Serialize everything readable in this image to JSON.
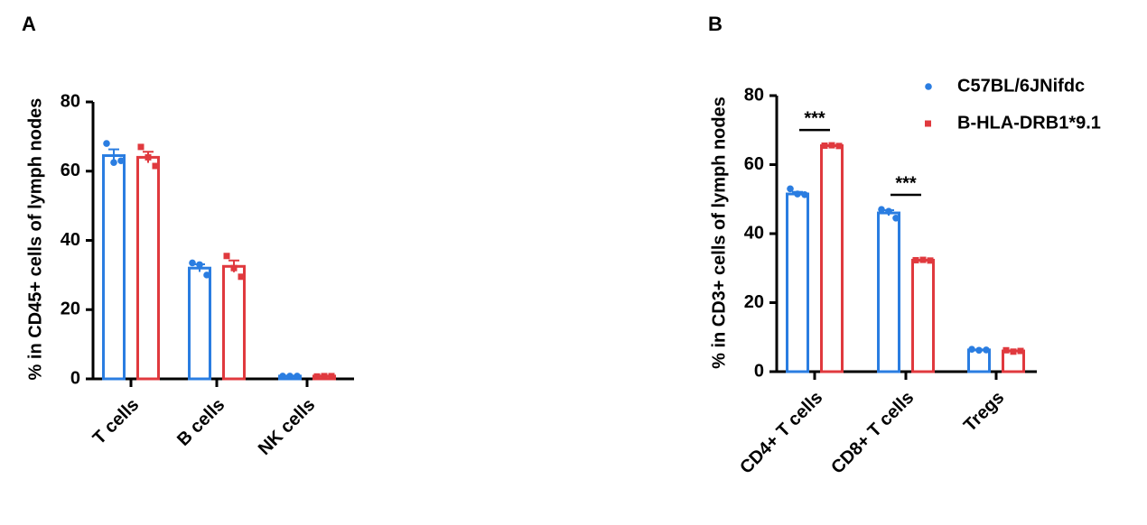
{
  "chart_data": [
    {
      "type": "bar",
      "panel_label": "A",
      "y_label": "% in CD45+ cells of lymph nodes",
      "categories": [
        "T cells",
        "B cells",
        "NK cells"
      ],
      "ylim": [
        0,
        80
      ],
      "yticks": [
        0,
        20,
        40,
        60,
        80
      ],
      "series": [
        {
          "color": "#2a7de1",
          "marker": "circle",
          "values": [
            64.5,
            32,
            0.8
          ],
          "errors": [
            1.8,
            1.1,
            0.1
          ],
          "points": [
            [
              68,
              62.5,
              63
            ],
            [
              33.5,
              33,
              30
            ],
            [
              0.8,
              0.8,
              0.8
            ]
          ]
        },
        {
          "color": "#e0393e",
          "marker": "square",
          "values": [
            64,
            32.5,
            0.8
          ],
          "errors": [
            1.6,
            1.7,
            0.1
          ],
          "points": [
            [
              67,
              64,
              61.5
            ],
            [
              35.5,
              32,
              29.5
            ],
            [
              0.7,
              0.8,
              0.8
            ]
          ]
        }
      ]
    },
    {
      "type": "bar",
      "panel_label": "B",
      "y_label": "% in CD3+ cells of lymph nodes",
      "categories": [
        "CD4+ T cells",
        "CD8+ T cells",
        "Tregs"
      ],
      "ylim": [
        0,
        80
      ],
      "yticks": [
        0,
        20,
        40,
        60,
        80
      ],
      "legend": "top-right",
      "annotations": [
        "***",
        "***"
      ],
      "series": [
        {
          "name": "C57BL/6JNifdc",
          "color": "#2a7de1",
          "marker": "circle",
          "values": [
            51.5,
            46,
            6.3
          ],
          "errors": [
            0.6,
            0.8,
            0.1
          ],
          "points": [
            [
              53,
              51.5,
              51.3
            ],
            [
              47,
              46.5,
              44.5
            ],
            [
              6.5,
              6.2,
              6.3
            ]
          ]
        },
        {
          "name": "B-HLA-DRB1*9.1",
          "color": "#e0393e",
          "marker": "square",
          "values": [
            65.5,
            32.3,
            6
          ],
          "errors": [
            0.1,
            0.1,
            0.1
          ],
          "points": [
            [
              65.5,
              65.6,
              65.4
            ],
            [
              32.3,
              32.4,
              32.2
            ],
            [
              6.2,
              5.8,
              6
            ]
          ]
        }
      ]
    }
  ]
}
